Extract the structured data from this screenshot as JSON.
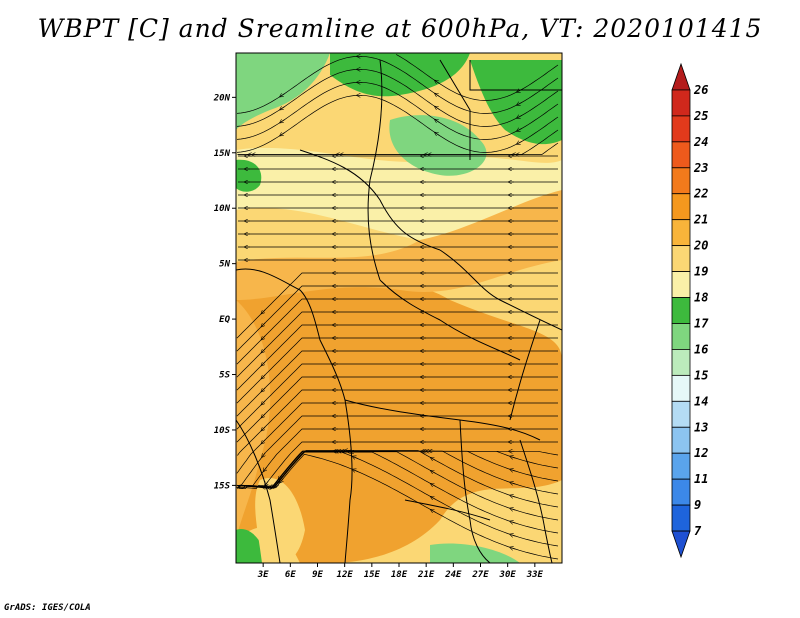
{
  "title": "WBPT [C] and Sreamline at 600hPa, VT: 2020101415",
  "credit": "GrADS: IGES/COLA",
  "map": {
    "lat_range": [
      -22,
      24
    ],
    "lon_range": [
      0,
      36
    ],
    "y_ticks": [
      {
        "label": "20N",
        "value": 20
      },
      {
        "label": "15N",
        "value": 15
      },
      {
        "label": "10N",
        "value": 10
      },
      {
        "label": "5N",
        "value": 5
      },
      {
        "label": "EQ",
        "value": 0
      },
      {
        "label": "5S",
        "value": -5
      },
      {
        "label": "10S",
        "value": -10
      },
      {
        "label": "15S",
        "value": -15
      }
    ],
    "x_ticks": [
      {
        "label": "3E",
        "value": 3
      },
      {
        "label": "6E",
        "value": 6
      },
      {
        "label": "9E",
        "value": 9
      },
      {
        "label": "12E",
        "value": 12
      },
      {
        "label": "15E",
        "value": 15
      },
      {
        "label": "18E",
        "value": 18
      },
      {
        "label": "21E",
        "value": 21
      },
      {
        "label": "24E",
        "value": 24
      },
      {
        "label": "27E",
        "value": 27
      },
      {
        "label": "30E",
        "value": 30
      },
      {
        "label": "33E",
        "value": 33
      }
    ],
    "field_colors": {
      "green_dark": "#3dba3d",
      "green_light": "#7fd67f",
      "yellow_pale": "#faf0a8",
      "yellow": "#fbd774",
      "orange_light": "#f7b64b",
      "orange": "#f0a22f"
    },
    "streamline_color": "#000000",
    "border_color": "#000000"
  },
  "colorbar": {
    "levels": [
      {
        "label": "26",
        "color": "#b41c1c"
      },
      {
        "label": "25",
        "color": "#d0281c"
      },
      {
        "label": "24",
        "color": "#e23a1c"
      },
      {
        "label": "23",
        "color": "#ee5a1c"
      },
      {
        "label": "22",
        "color": "#f27a1c"
      },
      {
        "label": "21",
        "color": "#f5981e"
      },
      {
        "label": "20",
        "color": "#f8b43a"
      },
      {
        "label": "19",
        "color": "#fbd774"
      },
      {
        "label": "18",
        "color": "#faf0a8"
      },
      {
        "label": "17",
        "color": "#3dba3d"
      },
      {
        "label": "16",
        "color": "#7fd67f"
      },
      {
        "label": "15",
        "color": "#bcebbc"
      },
      {
        "label": "14",
        "color": "#e6f8f8"
      },
      {
        "label": "13",
        "color": "#b4dcf4"
      },
      {
        "label": "12",
        "color": "#8cc4f0"
      },
      {
        "label": "11",
        "color": "#5aa4ec"
      },
      {
        "label": "9",
        "color": "#3c88e8"
      },
      {
        "label": "7",
        "color": "#1e64dc"
      }
    ],
    "bottom_color": "#1e50d2"
  }
}
